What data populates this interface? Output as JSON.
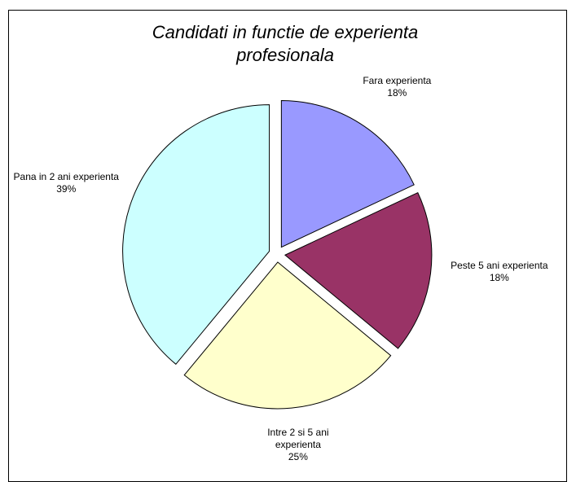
{
  "chart_data": {
    "type": "pie",
    "title": "Candidati in functie de experienta profesionala",
    "categories": [
      "Fara experienta",
      "Peste 5 ani experienta",
      "Intre 2 si 5 ani experienta",
      "Pana in 2 ani experienta"
    ],
    "values": [
      18,
      18,
      25,
      39
    ],
    "value_labels": [
      "18%",
      "18%",
      "25%",
      "39%"
    ],
    "colors": [
      "#9999ff",
      "#993366",
      "#ffffcc",
      "#ccffff"
    ]
  }
}
